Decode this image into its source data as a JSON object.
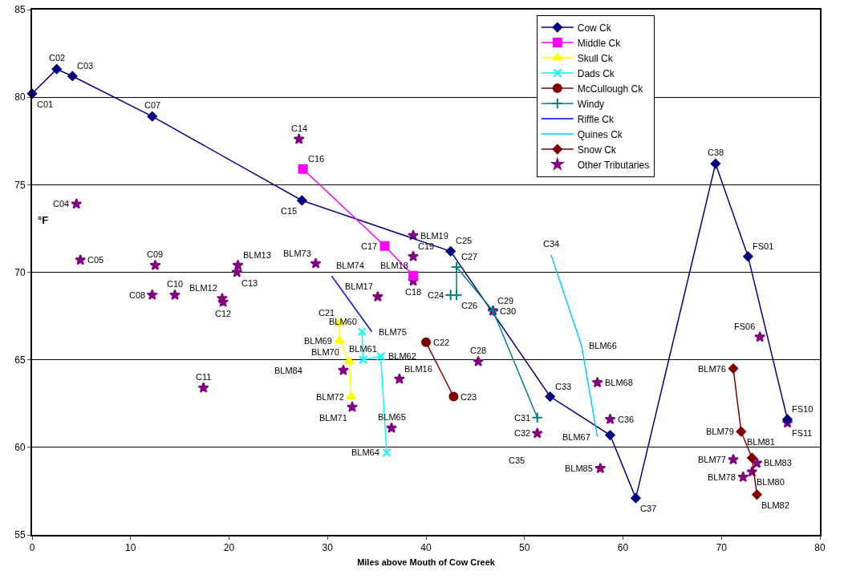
{
  "chart_data": {
    "type": "line",
    "xlabel": "Miles above Mouth of Cow Creek",
    "ylabel": "°F",
    "xlim": [
      0,
      80
    ],
    "xticks": [
      0,
      10,
      20,
      30,
      40,
      50,
      60,
      70,
      80
    ],
    "ylim": [
      55,
      85
    ],
    "yticks": [
      55,
      60,
      65,
      70,
      75,
      80,
      85
    ],
    "grid": "y",
    "legend": "top right",
    "series": [
      {
        "name": "Cow Ck",
        "color": "#000080",
        "marker": "diamond",
        "x": [
          0,
          2.5,
          4.1,
          12.2,
          27.4,
          42.5,
          52.6,
          58.7,
          61.3,
          69.4,
          72.7,
          76.7
        ],
        "values": [
          80.2,
          81.6,
          81.2,
          78.9,
          74.1,
          71.2,
          62.9,
          60.7,
          57.1,
          76.2,
          70.9,
          61.6
        ]
      },
      {
        "name": "Middle Ck",
        "color": "#ff00ff",
        "marker": "square",
        "x": [
          27.5,
          35.8,
          38.7
        ],
        "values": [
          75.9,
          71.5,
          69.8
        ]
      },
      {
        "name": "Skull Ck",
        "color": "#ffff00",
        "marker": "triangle",
        "x": [
          31.2,
          31.2,
          32.2,
          32.4
        ],
        "values": [
          67.1,
          66.1,
          64.9,
          62.9
        ]
      },
      {
        "name": "Dads Ck",
        "color": "#00ffff",
        "marker": "x",
        "x": [
          33.5,
          33.6,
          35.4,
          36.0
        ],
        "values": [
          66.6,
          65.0,
          65.2,
          59.7
        ]
      },
      {
        "name": "McCullough Ck",
        "color": "#800000",
        "marker": "circle",
        "x": [
          40.0,
          42.8
        ],
        "values": [
          66.0,
          62.9
        ]
      },
      {
        "name": "Windy",
        "color": "#008080",
        "marker": "cross",
        "x": [
          42.5,
          43.1,
          43.1,
          46.8,
          51.3
        ],
        "values": [
          68.7,
          68.7,
          70.3,
          67.8,
          61.7
        ]
      },
      {
        "name": "Riffle Ck",
        "color": "#0000ff",
        "marker": "none",
        "x": [
          30.4,
          34.5
        ],
        "values": [
          69.8,
          66.6
        ]
      },
      {
        "name": "Quines Ck",
        "color": "#00ccff",
        "marker": "none",
        "x": [
          52.7,
          55.8,
          57.4
        ],
        "values": [
          71.0,
          65.8,
          60.6
        ]
      },
      {
        "name": "Snow Ck",
        "color": "#800000",
        "marker": "diamond",
        "x": [
          71.2,
          72.0,
          73.1,
          73.6
        ],
        "values": [
          64.5,
          60.9,
          59.4,
          57.3
        ]
      },
      {
        "name": "Other Tributaries",
        "type": "scatter",
        "color": "#800080",
        "marker": "star",
        "x": [
          4.5,
          4.9,
          12.2,
          12.5,
          14.5,
          17.4,
          19.3,
          19.4,
          20.9,
          20.8,
          27.1,
          28.8,
          35.1,
          38.7,
          38.7,
          38.7,
          46.8,
          45.3,
          31.6,
          32.5,
          37.3,
          36.5,
          51.3,
          57.4,
          58.7,
          57.7,
          73.9,
          76.7,
          71.2,
          73.6,
          73.1,
          72.2
        ],
        "values": [
          73.9,
          70.7,
          68.7,
          70.4,
          68.7,
          63.4,
          68.5,
          68.3,
          70.4,
          70.0,
          77.6,
          70.5,
          68.6,
          72.1,
          70.9,
          69.5,
          67.8,
          64.9,
          64.4,
          62.3,
          63.9,
          61.1,
          60.8,
          63.7,
          61.6,
          58.8,
          66.3,
          61.4,
          59.3,
          59.1,
          58.6,
          58.3
        ]
      }
    ],
    "annotations": [
      {
        "text": "C01",
        "x": 0,
        "y": 80.2
      },
      {
        "text": "C02",
        "x": 2.5,
        "y": 81.6
      },
      {
        "text": "C03",
        "x": 4.1,
        "y": 81.2
      },
      {
        "text": "C07",
        "x": 12.2,
        "y": 78.9
      },
      {
        "text": "C15",
        "x": 27.4,
        "y": 74.1
      },
      {
        "text": "C25",
        "x": 42.5,
        "y": 71.2
      },
      {
        "text": "C33",
        "x": 52.6,
        "y": 62.9
      },
      {
        "text": "C37",
        "x": 61.3,
        "y": 57.1
      },
      {
        "text": "C38",
        "x": 69.4,
        "y": 76.2
      },
      {
        "text": "FS01",
        "x": 72.7,
        "y": 70.9
      },
      {
        "text": "FS10",
        "x": 76.7,
        "y": 61.6
      },
      {
        "text": "C16",
        "x": 27.5,
        "y": 75.9
      },
      {
        "text": "C17",
        "x": 35.8,
        "y": 71.5
      },
      {
        "text": "BLM18",
        "x": 38.7,
        "y": 69.8
      },
      {
        "text": "C21",
        "x": 31.2,
        "y": 67.1
      },
      {
        "text": "BLM69",
        "x": 31.2,
        "y": 66.1
      },
      {
        "text": "BLM70",
        "x": 32.2,
        "y": 64.9
      },
      {
        "text": "BLM72",
        "x": 32.4,
        "y": 62.9
      },
      {
        "text": "BLM60",
        "x": 33.5,
        "y": 66.6
      },
      {
        "text": "BLM61",
        "x": 33.6,
        "y": 65.0
      },
      {
        "text": "BLM62",
        "x": 35.4,
        "y": 65.2
      },
      {
        "text": "BLM64",
        "x": 36.0,
        "y": 59.7
      },
      {
        "text": "C22",
        "x": 40.0,
        "y": 66.0
      },
      {
        "text": "C23",
        "x": 42.8,
        "y": 62.9
      },
      {
        "text": "C24",
        "x": 42.5,
        "y": 68.7
      },
      {
        "text": "C26",
        "x": 43.1,
        "y": 68.7
      },
      {
        "text": "C27",
        "x": 43.1,
        "y": 70.3
      },
      {
        "text": "C29",
        "x": 46.8,
        "y": 67.8
      },
      {
        "text": "C31",
        "x": 51.3,
        "y": 61.7
      },
      {
        "text": "BLM74",
        "x": 30.4,
        "y": 69.8
      },
      {
        "text": "BLM75",
        "x": 34.5,
        "y": 66.6
      },
      {
        "text": "C34",
        "x": 52.7,
        "y": 71.0
      },
      {
        "text": "BLM66",
        "x": 55.8,
        "y": 65.8
      },
      {
        "text": "BLM67",
        "x": 57.4,
        "y": 60.6
      },
      {
        "text": "BLM76",
        "x": 71.2,
        "y": 64.5
      },
      {
        "text": "BLM79",
        "x": 72.0,
        "y": 60.9
      },
      {
        "text": "BLM81",
        "x": 73.1,
        "y": 59.4
      },
      {
        "text": "BLM82",
        "x": 73.6,
        "y": 57.3
      },
      {
        "text": "C04",
        "x": 4.5,
        "y": 73.9
      },
      {
        "text": "C05",
        "x": 4.9,
        "y": 70.7
      },
      {
        "text": "C08",
        "x": 12.2,
        "y": 68.7
      },
      {
        "text": "C09",
        "x": 12.5,
        "y": 70.4
      },
      {
        "text": "C10",
        "x": 14.5,
        "y": 68.7
      },
      {
        "text": "C11",
        "x": 17.4,
        "y": 63.4
      },
      {
        "text": "BLM12",
        "x": 19.3,
        "y": 68.5
      },
      {
        "text": "C12",
        "x": 19.4,
        "y": 68.3
      },
      {
        "text": "BLM13",
        "x": 20.9,
        "y": 70.4
      },
      {
        "text": "C13",
        "x": 20.8,
        "y": 70.0
      },
      {
        "text": "C14",
        "x": 27.1,
        "y": 77.6
      },
      {
        "text": "BLM73",
        "x": 28.8,
        "y": 70.5
      },
      {
        "text": "BLM17",
        "x": 35.1,
        "y": 68.6
      },
      {
        "text": "BLM19",
        "x": 38.7,
        "y": 72.1
      },
      {
        "text": "C19",
        "x": 38.7,
        "y": 70.9
      },
      {
        "text": "C18",
        "x": 38.7,
        "y": 69.5
      },
      {
        "text": "C30",
        "x": 46.8,
        "y": 67.8
      },
      {
        "text": "C28",
        "x": 45.3,
        "y": 64.9
      },
      {
        "text": "BLM71",
        "x": 32.5,
        "y": 62.3
      },
      {
        "text": "BLM16",
        "x": 37.3,
        "y": 63.9
      },
      {
        "text": "BLM65",
        "x": 36.5,
        "y": 61.1
      },
      {
        "text": "C32",
        "x": 51.3,
        "y": 60.8
      },
      {
        "text": "BLM68",
        "x": 57.4,
        "y": 63.7
      },
      {
        "text": "C36",
        "x": 58.7,
        "y": 61.6
      },
      {
        "text": "BLM85",
        "x": 57.7,
        "y": 58.8
      },
      {
        "text": "FS06",
        "x": 73.9,
        "y": 66.3
      },
      {
        "text": "FS11",
        "x": 76.7,
        "y": 61.4
      },
      {
        "text": "BLM77",
        "x": 71.2,
        "y": 59.3
      },
      {
        "text": "BLM83",
        "x": 73.6,
        "y": 59.1
      },
      {
        "text": "BLM80",
        "x": 73.1,
        "y": 58.6
      },
      {
        "text": "BLM78",
        "x": 72.2,
        "y": 58.3
      },
      "C35",
      "BLM84"
    ]
  }
}
